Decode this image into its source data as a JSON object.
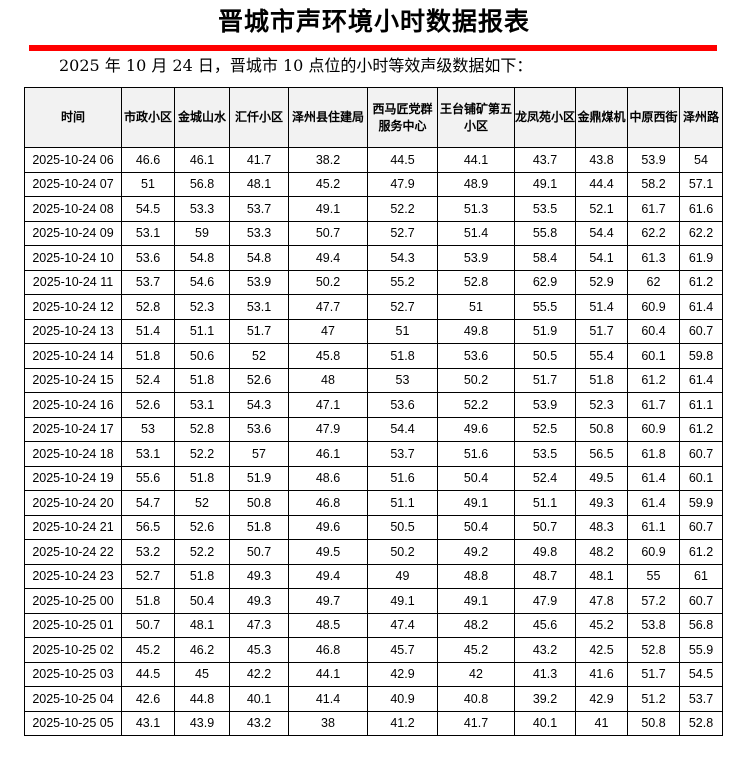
{
  "title": "晋城市声环境小时数据报表",
  "subtitle": "2025 年 10 月 24 日，晋城市 10 点位的小时等效声级数据如下：",
  "accent_color": "#ff0000",
  "table": {
    "headers": [
      "时间",
      "市政小区",
      "金城山水",
      "汇仟小区",
      "泽州县住建局",
      "西马匠党群服务中心",
      "王台铺矿第五小区",
      "龙凤苑小区",
      "金鼎煤机",
      "中原西街",
      "泽州路"
    ],
    "rows": [
      [
        "2025-10-24 06",
        "46.6",
        "46.1",
        "41.7",
        "38.2",
        "44.5",
        "44.1",
        "43.7",
        "43.8",
        "53.9",
        "54"
      ],
      [
        "2025-10-24 07",
        "51",
        "56.8",
        "48.1",
        "45.2",
        "47.9",
        "48.9",
        "49.1",
        "44.4",
        "58.2",
        "57.1"
      ],
      [
        "2025-10-24 08",
        "54.5",
        "53.3",
        "53.7",
        "49.1",
        "52.2",
        "51.3",
        "53.5",
        "52.1",
        "61.7",
        "61.6"
      ],
      [
        "2025-10-24 09",
        "53.1",
        "59",
        "53.3",
        "50.7",
        "52.7",
        "51.4",
        "55.8",
        "54.4",
        "62.2",
        "62.2"
      ],
      [
        "2025-10-24 10",
        "53.6",
        "54.8",
        "54.8",
        "49.4",
        "54.3",
        "53.9",
        "58.4",
        "54.1",
        "61.3",
        "61.9"
      ],
      [
        "2025-10-24 11",
        "53.7",
        "54.6",
        "53.9",
        "50.2",
        "55.2",
        "52.8",
        "62.9",
        "52.9",
        "62",
        "61.2"
      ],
      [
        "2025-10-24 12",
        "52.8",
        "52.3",
        "53.1",
        "47.7",
        "52.7",
        "51",
        "55.5",
        "51.4",
        "60.9",
        "61.4"
      ],
      [
        "2025-10-24 13",
        "51.4",
        "51.1",
        "51.7",
        "47",
        "51",
        "49.8",
        "51.9",
        "51.7",
        "60.4",
        "60.7"
      ],
      [
        "2025-10-24 14",
        "51.8",
        "50.6",
        "52",
        "45.8",
        "51.8",
        "53.6",
        "50.5",
        "55.4",
        "60.1",
        "59.8"
      ],
      [
        "2025-10-24 15",
        "52.4",
        "51.8",
        "52.6",
        "48",
        "53",
        "50.2",
        "51.7",
        "51.8",
        "61.2",
        "61.4"
      ],
      [
        "2025-10-24 16",
        "52.6",
        "53.1",
        "54.3",
        "47.1",
        "53.6",
        "52.2",
        "53.9",
        "52.3",
        "61.7",
        "61.1"
      ],
      [
        "2025-10-24 17",
        "53",
        "52.8",
        "53.6",
        "47.9",
        "54.4",
        "49.6",
        "52.5",
        "50.8",
        "60.9",
        "61.2"
      ],
      [
        "2025-10-24 18",
        "53.1",
        "52.2",
        "57",
        "46.1",
        "53.7",
        "51.6",
        "53.5",
        "56.5",
        "61.8",
        "60.7"
      ],
      [
        "2025-10-24 19",
        "55.6",
        "51.8",
        "51.9",
        "48.6",
        "51.6",
        "50.4",
        "52.4",
        "49.5",
        "61.4",
        "60.1"
      ],
      [
        "2025-10-24 20",
        "54.7",
        "52",
        "50.8",
        "46.8",
        "51.1",
        "49.1",
        "51.1",
        "49.3",
        "61.4",
        "59.9"
      ],
      [
        "2025-10-24 21",
        "56.5",
        "52.6",
        "51.8",
        "49.6",
        "50.5",
        "50.4",
        "50.7",
        "48.3",
        "61.1",
        "60.7"
      ],
      [
        "2025-10-24 22",
        "53.2",
        "52.2",
        "50.7",
        "49.5",
        "50.2",
        "49.2",
        "49.8",
        "48.2",
        "60.9",
        "61.2"
      ],
      [
        "2025-10-24 23",
        "52.7",
        "51.8",
        "49.3",
        "49.4",
        "49",
        "48.8",
        "48.7",
        "48.1",
        "55",
        "61"
      ],
      [
        "2025-10-25 00",
        "51.8",
        "50.4",
        "49.3",
        "49.7",
        "49.1",
        "49.1",
        "47.9",
        "47.8",
        "57.2",
        "60.7"
      ],
      [
        "2025-10-25 01",
        "50.7",
        "48.1",
        "47.3",
        "48.5",
        "47.4",
        "48.2",
        "45.6",
        "45.2",
        "53.8",
        "56.8"
      ],
      [
        "2025-10-25 02",
        "45.2",
        "46.2",
        "45.3",
        "46.8",
        "45.7",
        "45.2",
        "43.2",
        "42.5",
        "52.8",
        "55.9"
      ],
      [
        "2025-10-25 03",
        "44.5",
        "45",
        "42.2",
        "44.1",
        "42.9",
        "42",
        "41.3",
        "41.6",
        "51.7",
        "54.5"
      ],
      [
        "2025-10-25 04",
        "42.6",
        "44.8",
        "40.1",
        "41.4",
        "40.9",
        "40.8",
        "39.2",
        "42.9",
        "51.2",
        "53.7"
      ],
      [
        "2025-10-25 05",
        "43.1",
        "43.9",
        "43.2",
        "38",
        "41.2",
        "41.7",
        "40.1",
        "41",
        "50.8",
        "52.8"
      ]
    ]
  }
}
